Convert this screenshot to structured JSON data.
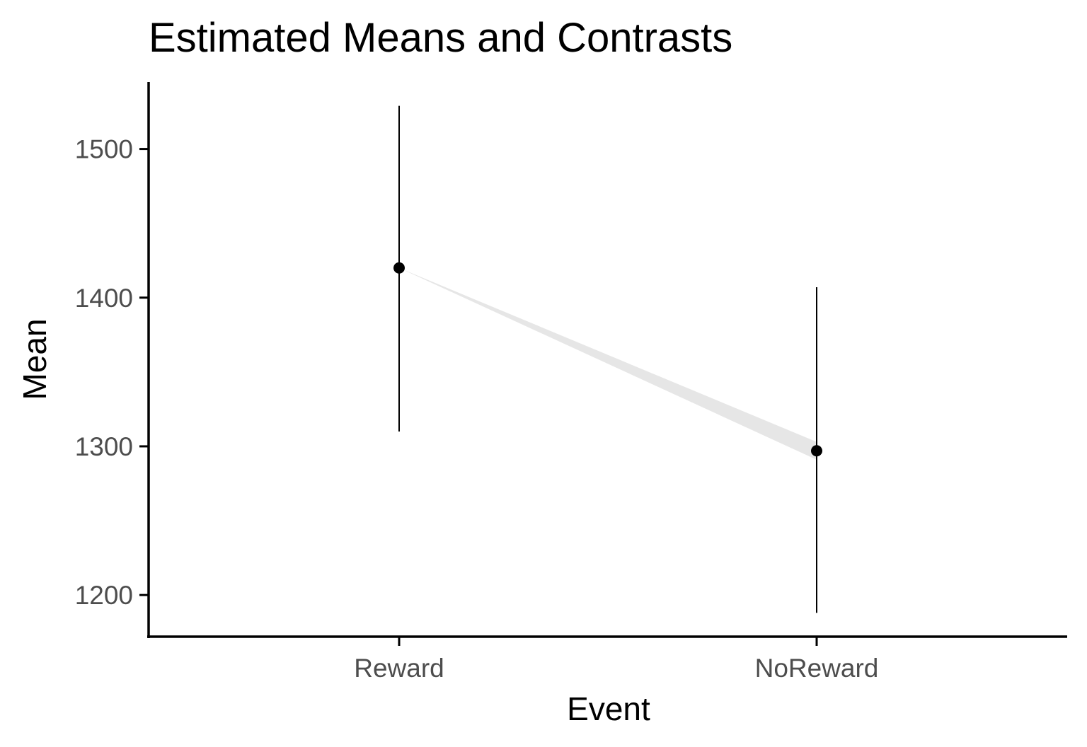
{
  "chart_data": {
    "type": "scatter",
    "title": "Estimated Means and Contrasts",
    "xlabel": "Event",
    "ylabel": "Mean",
    "categories": [
      "Reward",
      "NoReward"
    ],
    "series": [
      {
        "name": "Mean",
        "values": [
          1420,
          1297
        ],
        "ci_low": [
          1310,
          1188
        ],
        "ci_high": [
          1529,
          1407
        ]
      }
    ],
    "contrast": {
      "from": "Reward",
      "to": "NoReward",
      "band_half_width_at_end": 6
    },
    "yticks": [
      1200,
      1300,
      1400,
      1500
    ],
    "ylim": [
      1172,
      1545
    ],
    "grid": false,
    "legend": "none",
    "colors": {
      "point": "#000000",
      "errorbar": "#000000",
      "contrast_band": "#e6e6e6"
    }
  }
}
